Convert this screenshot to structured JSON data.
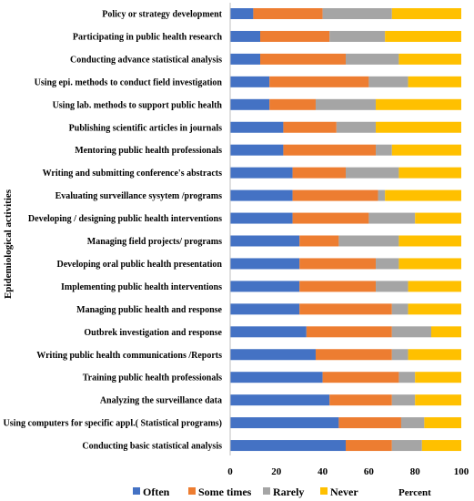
{
  "chart_data": {
    "type": "bar",
    "orientation": "horizontal",
    "stacked": true,
    "title": "",
    "xlabel": "Percent",
    "ylabel": "Epidemiological activities",
    "xlim": [
      0,
      100
    ],
    "xticks": [
      0,
      20,
      40,
      60,
      80,
      100
    ],
    "grid": false,
    "legend_position": "bottom",
    "categories": [
      "Policy or strategy development",
      "Participating in public health research",
      "Conducting advance statistical analysis",
      "Using epi. methods to conduct  field investigation",
      "Using lab. methods to support public health",
      "Publishing scientific articles in journals",
      "Mentoring public health professionals",
      "Writing and submitting conference's abstracts",
      "Evaluating surveillance sysytem /programs",
      "Developing / designing public health interventions",
      "Managing field projects/ programs",
      "Developing oral public health presentation",
      "Implementing public health interventions",
      "Managing public health and response",
      "Outbrek investigation and response",
      "Writing public health communications /Reports",
      "Training public health professionals",
      "Analyzing the surveillance data",
      "Using computers for specific appl.( Statistical programs)",
      "Conducting basic statistical analysis"
    ],
    "series": [
      {
        "name": "Often",
        "color": "#4472C4",
        "values": [
          10,
          13,
          13,
          17,
          17,
          23,
          23,
          27,
          27,
          27,
          30,
          30,
          30,
          30,
          33,
          37,
          40,
          43,
          47,
          50
        ]
      },
      {
        "name": "Some times",
        "color": "#ED7D31",
        "values": [
          30,
          30,
          37,
          43,
          20,
          23,
          40,
          23,
          37,
          33,
          17,
          33,
          33,
          40,
          37,
          33,
          33,
          27,
          27,
          20
        ]
      },
      {
        "name": "Rarely",
        "color": "#A5A5A5",
        "values": [
          30,
          24,
          23,
          17,
          26,
          17,
          7,
          23,
          3,
          20,
          26,
          10,
          14,
          7,
          17,
          7,
          7,
          10,
          10,
          13
        ]
      },
      {
        "name": "Never",
        "color": "#FFC000",
        "values": [
          30,
          33,
          27,
          23,
          37,
          37,
          30,
          27,
          33,
          20,
          27,
          27,
          23,
          23,
          13,
          23,
          20,
          20,
          16,
          17
        ]
      }
    ]
  }
}
